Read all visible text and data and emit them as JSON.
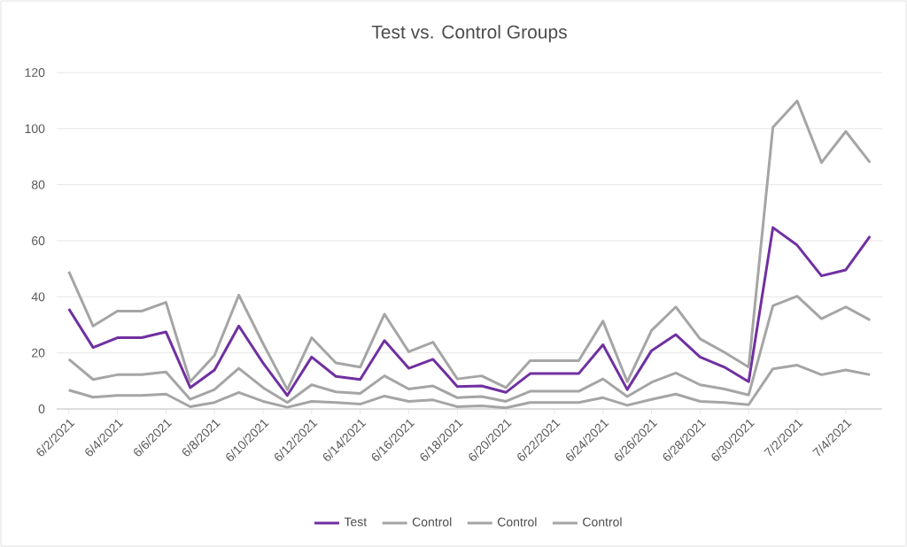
{
  "chart_data": {
    "type": "line",
    "title": "Test vs. Control Groups",
    "categories": [
      "6/2/2021",
      null,
      "6/4/2021",
      null,
      "6/6/2021",
      null,
      "6/8/2021",
      null,
      "6/10/2021",
      null,
      "6/12/2021",
      null,
      "6/14/2021",
      null,
      "6/16/2021",
      null,
      "6/18/2021",
      null,
      "6/20/2021",
      null,
      "6/22/2021",
      null,
      "6/24/2021",
      null,
      "6/26/2021",
      null,
      "6/28/2021",
      null,
      "6/30/2021",
      null,
      "7/2/2021",
      null,
      "7/4/2021",
      null
    ],
    "series": [
      {
        "name": "Test",
        "color": "#7030a0",
        "values": [
          35.7,
          21.9,
          25.4,
          25.4,
          27.5,
          7.6,
          13.9,
          29.6,
          16.4,
          4.8,
          18.5,
          11.6,
          10.5,
          24.4,
          14.5,
          17.7,
          8.0,
          8.2,
          5.9,
          12.6,
          12.6,
          12.6,
          22.9,
          6.9,
          20.8,
          26.5,
          18.5,
          14.9,
          9.7,
          64.7,
          58.4,
          47.5,
          49.6,
          61.6
        ]
      },
      {
        "name": "Control",
        "color": "#a5a5a5",
        "values": [
          49.0,
          29.6,
          34.9,
          34.9,
          38.0,
          9.7,
          19.1,
          40.6,
          23.3,
          6.9,
          25.4,
          16.4,
          14.9,
          33.8,
          20.4,
          23.8,
          10.7,
          11.8,
          7.6,
          17.2,
          17.2,
          17.2,
          31.3,
          9.7,
          28.0,
          36.4,
          25.0,
          20.2,
          14.9,
          100.5,
          109.9,
          87.9,
          99.0,
          87.9
        ]
      },
      {
        "name": "Control",
        "color": "#a5a5a5",
        "values": [
          17.7,
          10.5,
          12.2,
          12.2,
          13.2,
          3.4,
          6.9,
          14.5,
          7.6,
          2.3,
          8.6,
          6.1,
          5.5,
          11.8,
          7.1,
          8.2,
          4.0,
          4.4,
          2.7,
          6.3,
          6.3,
          6.3,
          10.7,
          4.4,
          9.5,
          12.8,
          8.6,
          7.1,
          5.0,
          36.8,
          40.2,
          32.2,
          36.4,
          31.7
        ]
      },
      {
        "name": "Control",
        "color": "#a5a5a5",
        "values": [
          6.7,
          4.2,
          4.8,
          4.8,
          5.3,
          0.8,
          2.3,
          5.9,
          2.7,
          0.6,
          2.7,
          2.3,
          1.7,
          4.6,
          2.7,
          3.2,
          0.8,
          1.1,
          0.4,
          2.3,
          2.3,
          2.3,
          4.0,
          1.3,
          3.4,
          5.3,
          2.7,
          2.3,
          1.5,
          14.3,
          15.6,
          12.2,
          13.9,
          12.2
        ]
      }
    ],
    "ylim": [
      0,
      120
    ],
    "yticks": [
      0,
      20,
      40,
      60,
      80,
      100,
      120
    ],
    "grid": "y",
    "legend": "bottom",
    "marker": "none",
    "line_style": "solid"
  }
}
